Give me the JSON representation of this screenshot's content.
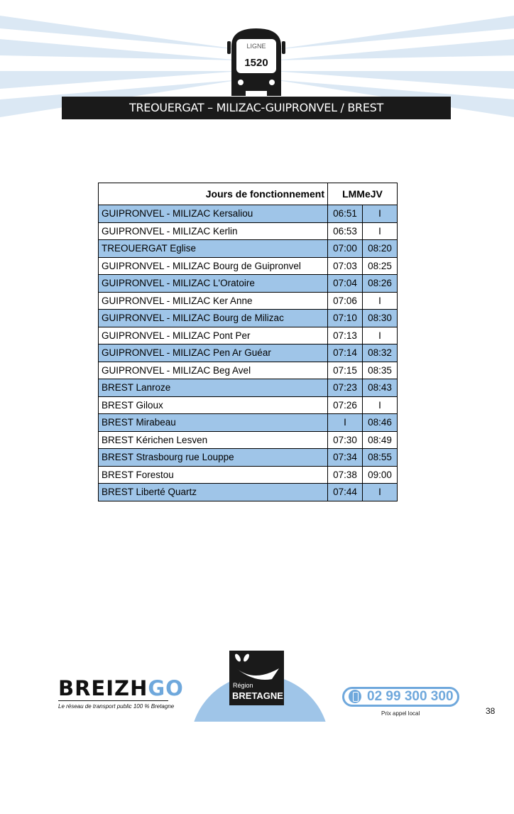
{
  "header": {
    "ligne_label": "LIGNE",
    "ligne_number": "1520",
    "route_title": "TREOUERGAT – MILIZAC-GUIPRONVEL / BREST"
  },
  "timetable": {
    "header_label": "Jours de fonctionnement",
    "header_days": "LMMeJV",
    "rows": [
      {
        "stop": "GUIPRONVEL - MILIZAC Kersaliou",
        "t1": "06:51",
        "t2": "I"
      },
      {
        "stop": "GUIPRONVEL - MILIZAC Kerlin",
        "t1": "06:53",
        "t2": "I"
      },
      {
        "stop": "TREOUERGAT Eglise",
        "t1": "07:00",
        "t2": "08:20"
      },
      {
        "stop": "GUIPRONVEL - MILIZAC Bourg de Guipronvel",
        "t1": "07:03",
        "t2": "08:25"
      },
      {
        "stop": "GUIPRONVEL - MILIZAC L'Oratoire",
        "t1": "07:04",
        "t2": "08:26"
      },
      {
        "stop": "GUIPRONVEL - MILIZAC Ker Anne",
        "t1": "07:06",
        "t2": "I"
      },
      {
        "stop": "GUIPRONVEL - MILIZAC Bourg de Milizac",
        "t1": "07:10",
        "t2": "08:30"
      },
      {
        "stop": "GUIPRONVEL - MILIZAC Pont Per",
        "t1": "07:13",
        "t2": "I"
      },
      {
        "stop": "GUIPRONVEL - MILIZAC Pen Ar Guéar",
        "t1": "07:14",
        "t2": "08:32"
      },
      {
        "stop": "GUIPRONVEL - MILIZAC Beg Avel",
        "t1": "07:15",
        "t2": "08:35"
      },
      {
        "stop": "BREST Lanroze",
        "t1": "07:23",
        "t2": "08:43"
      },
      {
        "stop": "BREST Giloux",
        "t1": "07:26",
        "t2": "I"
      },
      {
        "stop": "BREST Mirabeau",
        "t1": "I",
        "t2": "08:46"
      },
      {
        "stop": "BREST Kérichen Lesven",
        "t1": "07:30",
        "t2": "08:49"
      },
      {
        "stop": "BREST Strasbourg rue Louppe",
        "t1": "07:34",
        "t2": "08:55"
      },
      {
        "stop": "BREST Forestou",
        "t1": "07:38",
        "t2": "09:00"
      },
      {
        "stop": "BREST Liberté Quartz",
        "t1": "07:44",
        "t2": "I"
      }
    ]
  },
  "footer": {
    "breizhgo_logo": "BREIZHGO",
    "breizhgo_tagline": "Le réseau de transport public 100 % Bretagne",
    "region_logo_line1": "Région",
    "region_logo_line2": "BRETAGNE",
    "phone_number": "02 99 300 300",
    "phone_note": "Prix appel local",
    "page_number": "38"
  },
  "colors": {
    "row_highlight": "#9fc5e8",
    "accent": "#6fa8dc",
    "title_bar": "#1a1a1a"
  }
}
